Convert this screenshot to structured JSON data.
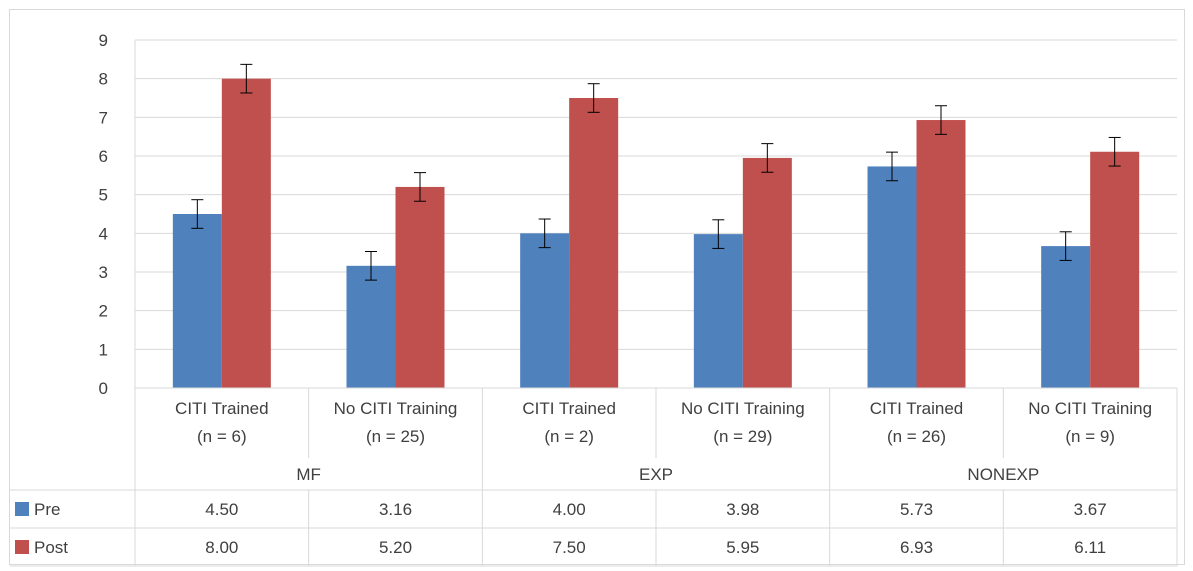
{
  "chart_data": {
    "type": "bar",
    "title": "",
    "xlabel": "",
    "ylabel": "",
    "ylim": [
      0,
      9
    ],
    "yticks": [
      "0",
      "1",
      "2",
      "3",
      "4",
      "5",
      "6",
      "7",
      "8",
      "9"
    ],
    "grid": true,
    "legend": "data-table",
    "categories": [
      {
        "line1": "CITI Trained",
        "line2": "(n = 6)"
      },
      {
        "line1": "No CITI Training",
        "line2": "(n = 25)"
      },
      {
        "line1": "CITI Trained",
        "line2": "(n = 2)"
      },
      {
        "line1": "No CITI Training",
        "line2": "(n = 29)"
      },
      {
        "line1": "CITI Trained",
        "line2": "(n = 26)"
      },
      {
        "line1": "No CITI Training",
        "line2": "(n = 9)"
      }
    ],
    "groups": [
      "MF",
      "EXP",
      "NONEXP"
    ],
    "error_bar": 0.37,
    "series": [
      {
        "name": "Pre",
        "color": "#4f81bd",
        "values": [
          4.5,
          3.16,
          4.0,
          3.98,
          5.73,
          3.67
        ],
        "labels": [
          "4.50",
          "3.16",
          "4.00",
          "3.98",
          "5.73",
          "3.67"
        ]
      },
      {
        "name": "Post",
        "color": "#c0504d",
        "values": [
          8.0,
          5.2,
          7.5,
          5.95,
          6.93,
          6.11
        ],
        "labels": [
          "8.00",
          "5.20",
          "7.50",
          "5.95",
          "6.93",
          "6.11"
        ]
      }
    ]
  }
}
